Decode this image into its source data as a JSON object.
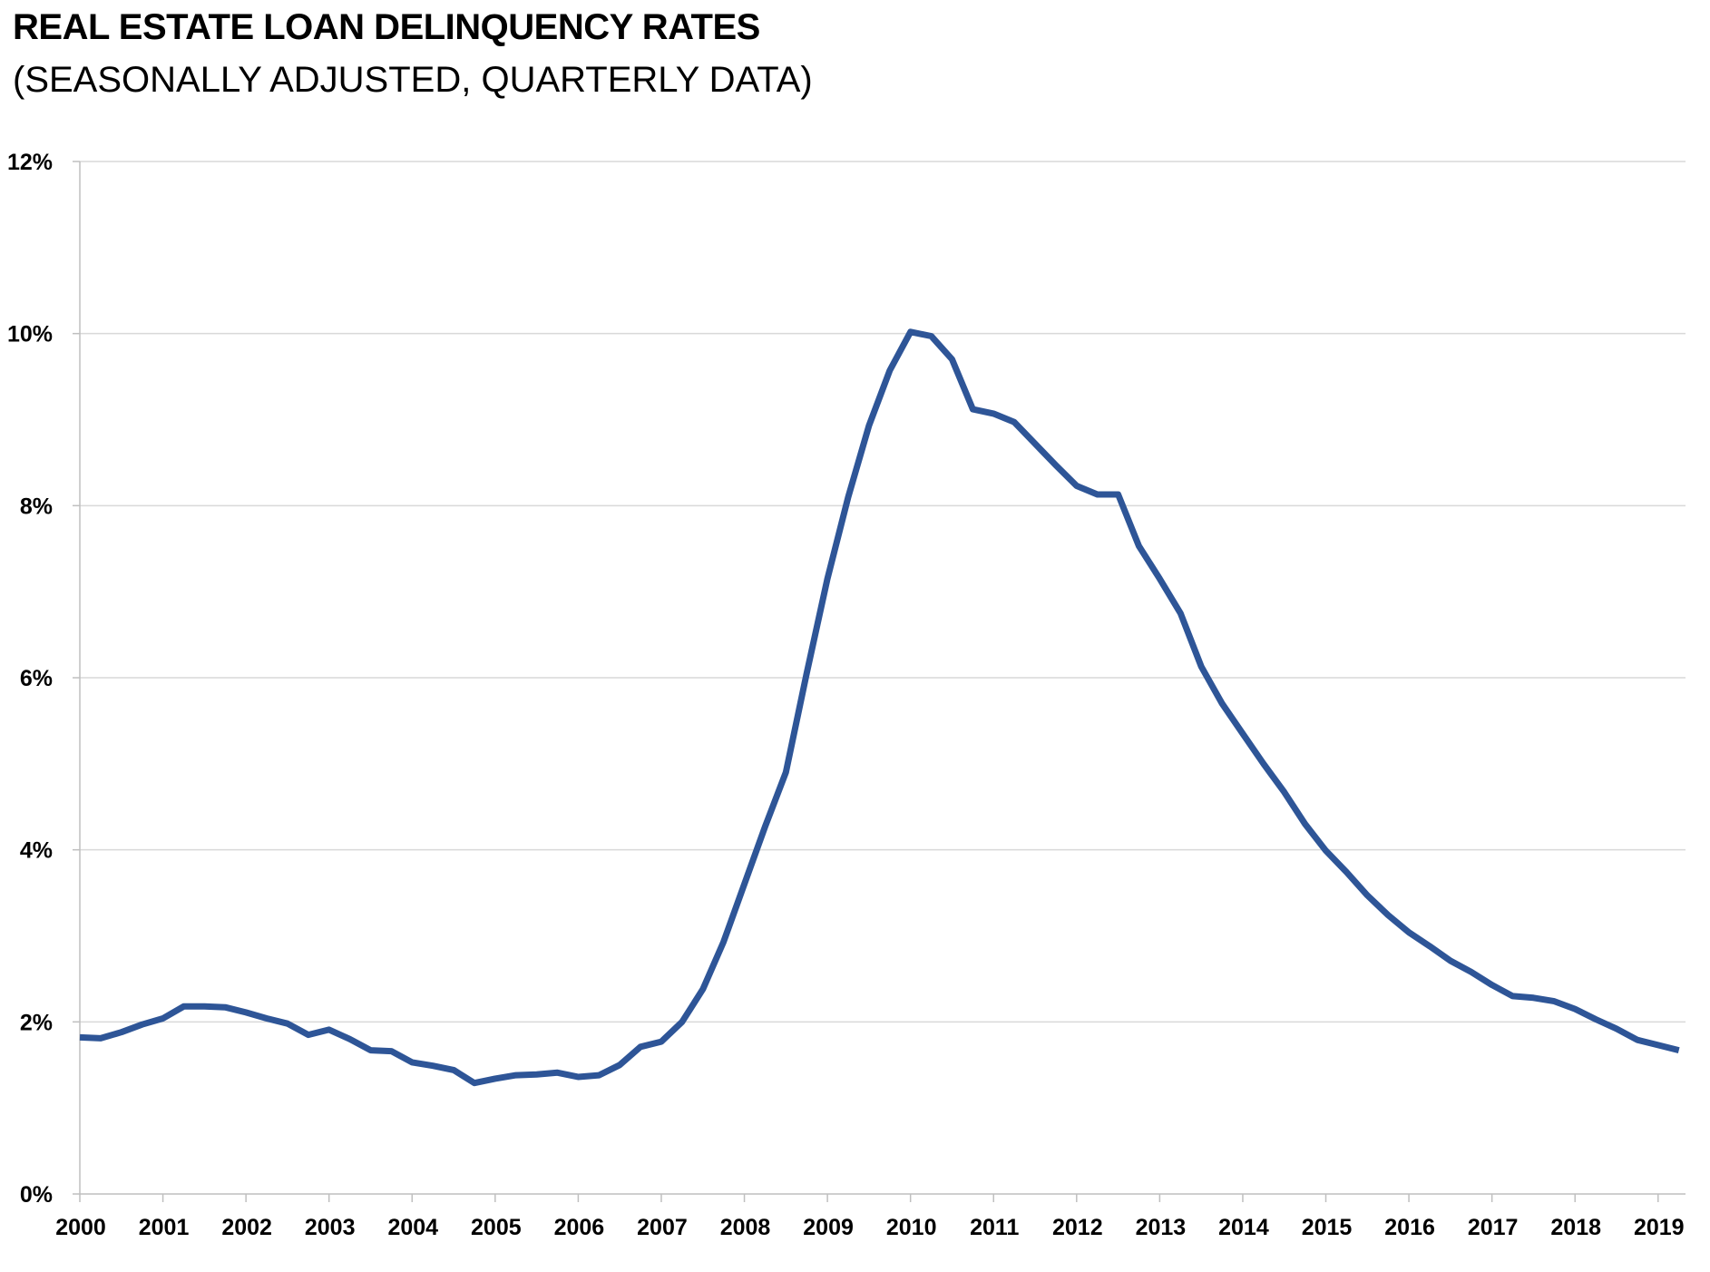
{
  "chart_data": {
    "type": "line",
    "title": "REAL ESTATE LOAN DELINQUENCY RATES",
    "subtitle": "(SEASONALLY ADJUSTED, QUARTERLY DATA)",
    "xlabel": "",
    "ylabel": "",
    "ylim": [
      0,
      12
    ],
    "xlim": [
      2000,
      2019.33
    ],
    "grid": true,
    "yticks": [
      0,
      2,
      4,
      6,
      8,
      10,
      12
    ],
    "ytick_labels": [
      "0%",
      "2%",
      "4%",
      "6%",
      "8%",
      "10%",
      "12%"
    ],
    "xtick_labels": [
      "2000",
      "2001",
      "2002",
      "2003",
      "2004",
      "2005",
      "2006",
      "2007",
      "2008",
      "2009",
      "2010",
      "2011",
      "2012",
      "2013",
      "2014",
      "2015",
      "2016",
      "2017",
      "2018",
      "2019"
    ],
    "series": [
      {
        "name": "Real estate loan delinquency rate",
        "color": "#2e5597",
        "x_start": 2000,
        "x_step": 0.25,
        "values": [
          1.82,
          1.81,
          1.88,
          1.97,
          2.04,
          2.18,
          2.18,
          2.17,
          2.11,
          2.04,
          1.98,
          1.85,
          1.91,
          1.8,
          1.67,
          1.66,
          1.53,
          1.49,
          1.44,
          1.29,
          1.34,
          1.38,
          1.39,
          1.41,
          1.36,
          1.38,
          1.5,
          1.71,
          1.77,
          2.0,
          2.38,
          2.93,
          3.6,
          4.27,
          4.9,
          6.05,
          7.15,
          8.1,
          8.93,
          9.57,
          10.02,
          9.97,
          9.7,
          9.12,
          9.07,
          8.97,
          8.72,
          8.47,
          8.23,
          8.13,
          8.13,
          7.53,
          7.15,
          6.75,
          6.13,
          5.7,
          5.35,
          5.0,
          4.67,
          4.3,
          3.99,
          3.74,
          3.47,
          3.24,
          3.04,
          2.88,
          2.71,
          2.58,
          2.43,
          2.3,
          2.28,
          2.24,
          2.15,
          2.03,
          1.92,
          1.79,
          1.73,
          1.67
        ]
      }
    ]
  }
}
